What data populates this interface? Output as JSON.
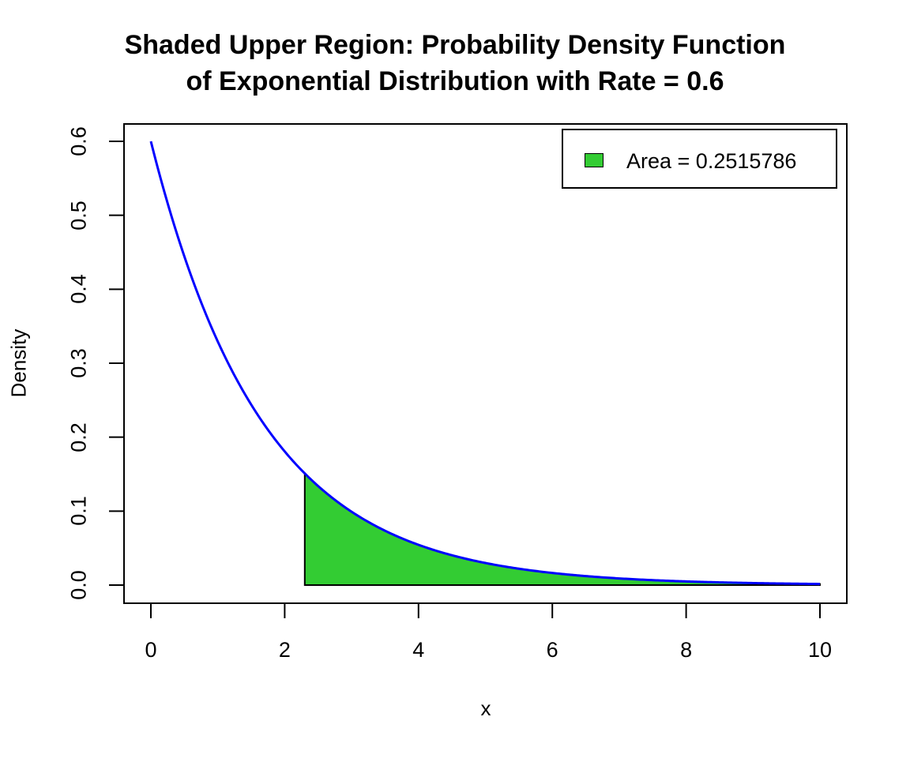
{
  "chart_data": {
    "type": "area",
    "title": "Shaded Upper Region: Probability Density Function of Exponential Distribution with Rate = 0.6",
    "title_lines": [
      "Shaded Upper Region: Probability Density Function",
      "of Exponential Distribution with Rate = 0.6"
    ],
    "xlabel": "x",
    "ylabel": "Density",
    "xlim": [
      0,
      10
    ],
    "ylim": [
      0,
      0.6
    ],
    "x_ticks": [
      "0",
      "2",
      "4",
      "6",
      "8",
      "10"
    ],
    "y_ticks": [
      "0.0",
      "0.1",
      "0.2",
      "0.3",
      "0.4",
      "0.5",
      "0.6"
    ],
    "grid": false,
    "legend_position": "topright",
    "distribution": "exponential",
    "rate": 0.6,
    "shaded_region": {
      "from": 2.3,
      "to": 10,
      "area": 0.2515786
    },
    "series": [
      {
        "name": "PDF",
        "color": "#0000ff",
        "x": [
          0,
          0.5,
          1,
          1.5,
          2,
          2.3,
          2.5,
          3,
          3.5,
          4,
          4.5,
          5,
          6,
          7,
          8,
          9,
          10
        ],
        "values": [
          0.6,
          0.4445,
          0.3293,
          0.2439,
          0.1807,
          0.1509,
          0.1339,
          0.0992,
          0.0735,
          0.0544,
          0.0403,
          0.0299,
          0.0164,
          0.009,
          0.0049,
          0.0027,
          0.0015
        ]
      }
    ],
    "legend": [
      {
        "label": "Area = 0.2515786",
        "color": "#33cc33"
      }
    ]
  },
  "colors": {
    "curve": "#0000ff",
    "fill": "#33cc33",
    "axis": "#000000"
  }
}
